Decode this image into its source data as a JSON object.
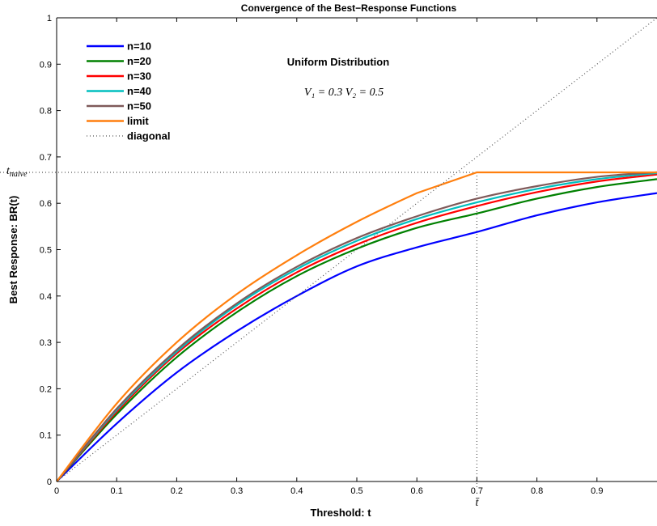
{
  "chart_data": {
    "type": "line",
    "title": "Convergence of the Best−Response Functions",
    "xlabel": "Threshold: t",
    "ylabel": "Best Response: BR(t)",
    "xlim": [
      0,
      1
    ],
    "ylim": [
      0,
      1
    ],
    "xticks": [
      0,
      0.1,
      0.2,
      0.3,
      0.4,
      0.5,
      0.6,
      0.7,
      0.8,
      0.9
    ],
    "yticks": [
      0,
      0.1,
      0.2,
      0.3,
      0.4,
      0.5,
      0.6,
      0.7,
      0.8,
      0.9,
      1
    ],
    "grid": false,
    "legend_position": "top-left",
    "annotations": {
      "distribution": "Uniform Distribution",
      "params": "V₁ = 0.3   V₂ = 0.5",
      "t_naive_label": "t",
      "t_naive_sub": "naive",
      "t_bar_label": "t̄",
      "t_naive_value": 0.6667,
      "t_bar_value": 0.7
    },
    "series": [
      {
        "name": "n=10",
        "color": "#0000ff",
        "style": "solid",
        "x": [
          0,
          0.1,
          0.2,
          0.3,
          0.4,
          0.5,
          0.6,
          0.7,
          0.8,
          0.9,
          1.0
        ],
        "y": [
          0,
          0.125,
          0.235,
          0.324,
          0.4,
          0.464,
          0.505,
          0.538,
          0.574,
          0.602,
          0.622
        ]
      },
      {
        "name": "n=20",
        "color": "#008000",
        "style": "solid",
        "x": [
          0,
          0.1,
          0.2,
          0.3,
          0.4,
          0.5,
          0.6,
          0.7,
          0.8,
          0.9,
          1.0
        ],
        "y": [
          0,
          0.145,
          0.268,
          0.365,
          0.443,
          0.502,
          0.547,
          0.578,
          0.61,
          0.635,
          0.652
        ]
      },
      {
        "name": "n=30",
        "color": "#ff0000",
        "style": "solid",
        "x": [
          0,
          0.1,
          0.2,
          0.3,
          0.4,
          0.5,
          0.6,
          0.7,
          0.8,
          0.9,
          1.0
        ],
        "y": [
          0,
          0.15,
          0.276,
          0.373,
          0.451,
          0.511,
          0.558,
          0.594,
          0.624,
          0.647,
          0.662
        ]
      },
      {
        "name": "n=40",
        "color": "#00bfbf",
        "style": "solid",
        "x": [
          0,
          0.1,
          0.2,
          0.3,
          0.4,
          0.5,
          0.6,
          0.7,
          0.8,
          0.9,
          1.0
        ],
        "y": [
          0,
          0.154,
          0.28,
          0.38,
          0.458,
          0.519,
          0.566,
          0.602,
          0.631,
          0.652,
          0.665
        ]
      },
      {
        "name": "n=50",
        "color": "#7f5a5a",
        "style": "solid",
        "x": [
          0,
          0.1,
          0.2,
          0.3,
          0.4,
          0.5,
          0.6,
          0.7,
          0.8,
          0.9,
          1.0
        ],
        "y": [
          0,
          0.157,
          0.284,
          0.384,
          0.463,
          0.525,
          0.572,
          0.61,
          0.637,
          0.657,
          0.667
        ]
      },
      {
        "name": "limit",
        "color": "#ff7f0e",
        "style": "solid",
        "x": [
          0,
          0.1,
          0.2,
          0.3,
          0.4,
          0.5,
          0.6,
          0.7,
          0.8,
          0.9,
          1.0
        ],
        "y": [
          0,
          0.168,
          0.3,
          0.404,
          0.488,
          0.56,
          0.622,
          0.6667,
          0.6667,
          0.6667,
          0.6667
        ]
      },
      {
        "name": "diagonal",
        "color": "#555555",
        "style": "dotted",
        "x": [
          0,
          1
        ],
        "y": [
          0,
          1
        ]
      }
    ]
  }
}
